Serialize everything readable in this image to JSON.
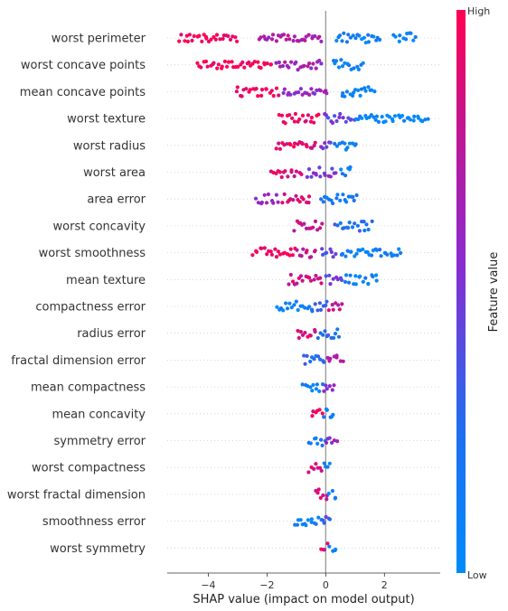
{
  "chart_data": {
    "type": "scatter",
    "subtype": "shap-beeswarm",
    "xlabel": "SHAP value (impact on model output)",
    "xlim": [
      -5.4,
      3.9
    ],
    "xticks": [
      -4,
      -2,
      0,
      2
    ],
    "zero_line": true,
    "colorbar": {
      "label": "Feature value",
      "high_label": "High",
      "low_label": "Low",
      "high_color": "#ff0d57",
      "low_color": "#1e88e5"
    },
    "features": [
      {
        "name": "worst perimeter",
        "ranges": [
          [
            -5.0,
            -3.0,
            1
          ],
          [
            -2.3,
            -0.1,
            0.7
          ],
          [
            0.3,
            1.9,
            0.12
          ],
          [
            2.3,
            3.1,
            0.04
          ]
        ]
      },
      {
        "name": "worst concave points",
        "ranges": [
          [
            -4.4,
            -1.8,
            1
          ],
          [
            -1.7,
            -0.1,
            0.65
          ],
          [
            0.2,
            1.3,
            0.1
          ]
        ]
      },
      {
        "name": "mean concave points",
        "ranges": [
          [
            -3.1,
            -1.6,
            0.95
          ],
          [
            -1.5,
            0.1,
            0.6
          ],
          [
            0.5,
            1.7,
            0.1
          ]
        ]
      },
      {
        "name": "worst texture",
        "ranges": [
          [
            -1.6,
            -0.2,
            0.95
          ],
          [
            -0.1,
            1.0,
            0.45
          ],
          [
            1.0,
            3.5,
            0.05
          ]
        ]
      },
      {
        "name": "worst radius",
        "ranges": [
          [
            -1.7,
            -0.3,
            0.9
          ],
          [
            -0.2,
            0.2,
            0.5
          ],
          [
            0.3,
            1.1,
            0.1
          ]
        ]
      },
      {
        "name": "worst area",
        "ranges": [
          [
            -1.9,
            -0.8,
            0.85
          ],
          [
            -0.7,
            0.4,
            0.5
          ],
          [
            0.5,
            0.9,
            0.1
          ]
        ]
      },
      {
        "name": "area error",
        "ranges": [
          [
            -2.4,
            -1.6,
            0.6
          ],
          [
            -1.5,
            -0.5,
            0.85
          ],
          [
            -0.2,
            1.1,
            0.12
          ]
        ]
      },
      {
        "name": "worst concavity",
        "ranges": [
          [
            -1.1,
            -0.1,
            0.8
          ],
          [
            0.3,
            1.6,
            0.25
          ]
        ]
      },
      {
        "name": "worst smoothness",
        "ranges": [
          [
            -2.5,
            -1.0,
            1
          ],
          [
            -1.0,
            -0.3,
            0.8
          ],
          [
            -0.2,
            0.4,
            0.4
          ],
          [
            0.5,
            2.6,
            0.08
          ]
        ]
      },
      {
        "name": "mean texture",
        "ranges": [
          [
            -1.3,
            -0.1,
            0.85
          ],
          [
            0.0,
            0.6,
            0.45
          ],
          [
            0.6,
            1.8,
            0.1
          ]
        ]
      },
      {
        "name": "compactness error",
        "ranges": [
          [
            -1.7,
            -0.6,
            0.1
          ],
          [
            -0.6,
            0.1,
            0.25
          ],
          [
            0.1,
            0.6,
            0.75
          ]
        ]
      },
      {
        "name": "radius error",
        "ranges": [
          [
            -1.0,
            -0.3,
            0.85
          ],
          [
            -0.3,
            0.5,
            0.2
          ]
        ]
      },
      {
        "name": "fractal dimension error",
        "ranges": [
          [
            -0.8,
            0.0,
            0.25
          ],
          [
            0.0,
            0.6,
            0.75
          ]
        ]
      },
      {
        "name": "mean compactness",
        "ranges": [
          [
            -0.8,
            -0.1,
            0.1
          ],
          [
            -0.1,
            0.3,
            0.6
          ]
        ]
      },
      {
        "name": "mean concavity",
        "ranges": [
          [
            -0.5,
            -0.1,
            0.95
          ],
          [
            -0.1,
            0.3,
            0.1
          ]
        ]
      },
      {
        "name": "symmetry error",
        "ranges": [
          [
            -0.6,
            0.0,
            0.2
          ],
          [
            0.0,
            0.4,
            0.6
          ]
        ]
      },
      {
        "name": "worst compactness",
        "ranges": [
          [
            -0.6,
            -0.1,
            0.9
          ],
          [
            -0.1,
            0.2,
            0.1
          ]
        ]
      },
      {
        "name": "worst fractal dimension",
        "ranges": [
          [
            -0.4,
            0.1,
            0.85
          ],
          [
            0.1,
            0.4,
            0.1
          ]
        ]
      },
      {
        "name": "smoothness error",
        "ranges": [
          [
            -1.1,
            -0.2,
            0.1
          ],
          [
            -0.2,
            0.2,
            0.35
          ]
        ]
      },
      {
        "name": "worst symmetry",
        "ranges": [
          [
            -0.2,
            0.1,
            0.9
          ],
          [
            0.1,
            0.4,
            0.1
          ]
        ]
      }
    ]
  }
}
